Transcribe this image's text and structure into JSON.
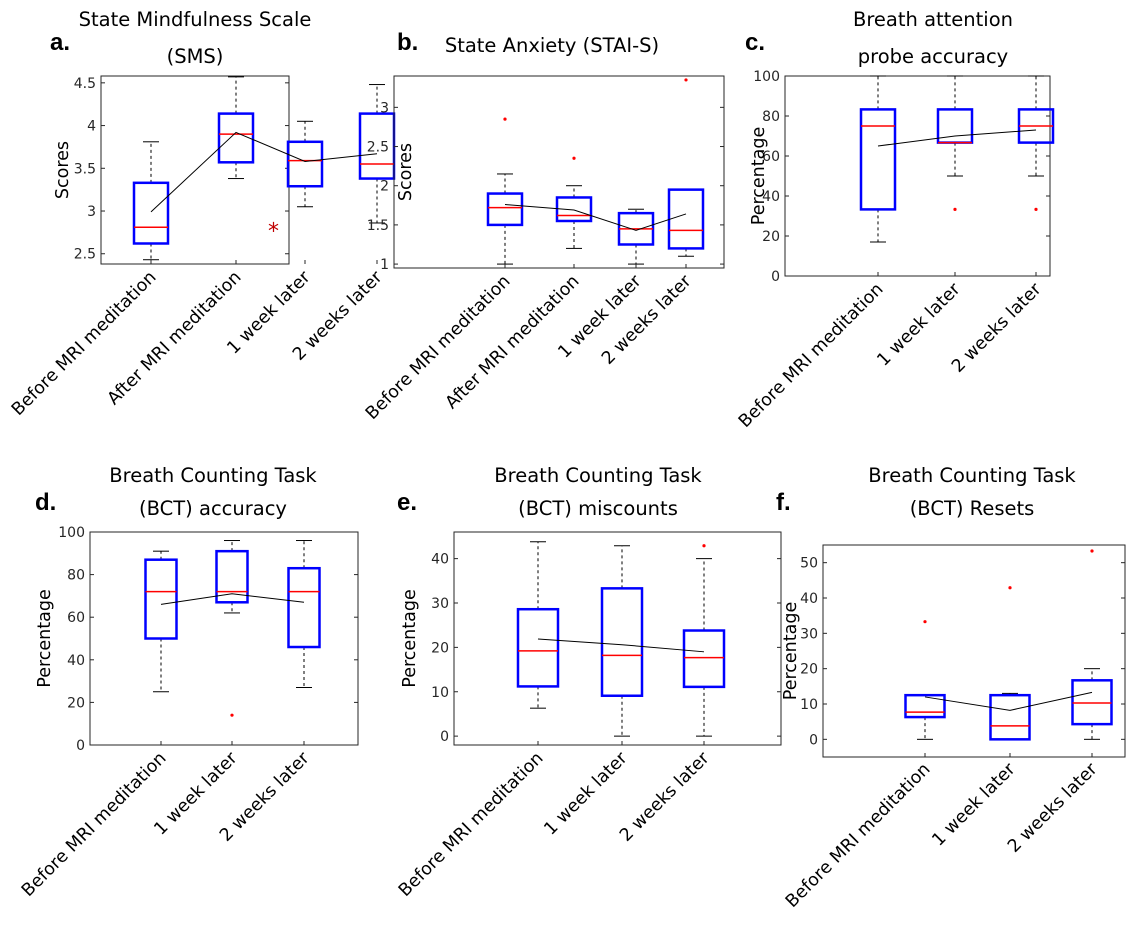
{
  "figure": {
    "colors": {
      "box": "#0000ff",
      "median": "#ff0000",
      "outlier": "#ff0000",
      "whisker": "#000000",
      "mean_line": "#000000",
      "significance": "#c00000"
    }
  },
  "chart_data": [
    {
      "type": "box",
      "panel": "a.",
      "title": [
        "State Mindfulness Scale",
        "(SMS)"
      ],
      "ylabel": "Scores",
      "ylim": [
        2.38,
        4.58
      ],
      "yticks": [
        "2.5",
        "3",
        "3.5",
        "4",
        "4.5"
      ],
      "categories": [
        "Before MRI meditation",
        "After MRI meditation",
        "1 week later",
        "2 weeks later"
      ],
      "boxes": [
        {
          "whisker_low": 2.43,
          "q1": 2.62,
          "median": 2.81,
          "q3": 3.33,
          "whisker_high": 3.81,
          "outliers": []
        },
        {
          "whisker_low": 3.38,
          "q1": 3.57,
          "median": 3.9,
          "q3": 4.14,
          "whisker_high": 4.57,
          "outliers": []
        },
        {
          "whisker_low": 3.05,
          "q1": 3.29,
          "median": 3.59,
          "q3": 3.81,
          "whisker_high": 4.05,
          "outliers": []
        },
        {
          "whisker_low": 2.86,
          "q1": 3.38,
          "median": 3.55,
          "q3": 4.14,
          "whisker_high": 4.48,
          "outliers": []
        }
      ],
      "means": [
        2.99,
        3.92,
        3.58,
        3.67
      ],
      "annotations": [
        {
          "text": "*",
          "category_index": 1.5,
          "y": 2.82
        }
      ]
    },
    {
      "type": "box",
      "panel": "b.",
      "title": [
        "State Anxiety (STAI-S)"
      ],
      "ylabel": "Scores",
      "ylim": [
        0.95,
        3.4
      ],
      "yticks": [
        "1",
        "1.5",
        "2",
        "2.5",
        "3"
      ],
      "categories": [
        "Before MRI meditation",
        "After MRI meditation",
        "1 week later",
        "2 weeks later"
      ],
      "boxes": [
        {
          "whisker_low": 1.0,
          "q1": 1.5,
          "median": 1.72,
          "q3": 1.9,
          "whisker_high": 2.15,
          "outliers": [
            2.85
          ]
        },
        {
          "whisker_low": 1.2,
          "q1": 1.55,
          "median": 1.62,
          "q3": 1.85,
          "whisker_high": 2.0,
          "outliers": [
            2.35
          ]
        },
        {
          "whisker_low": 1.0,
          "q1": 1.25,
          "median": 1.45,
          "q3": 1.65,
          "whisker_high": 1.7,
          "outliers": []
        },
        {
          "whisker_low": 1.1,
          "q1": 1.2,
          "median": 1.43,
          "q3": 1.95,
          "whisker_high": 1.95,
          "outliers": [
            3.35
          ]
        }
      ],
      "means": [
        1.76,
        1.69,
        1.43,
        1.64
      ]
    },
    {
      "type": "box",
      "panel": "c.",
      "title": [
        "Breath attention",
        "probe accuracy"
      ],
      "ylabel": "Percentage",
      "ylim": [
        0,
        100
      ],
      "yticks": [
        "0",
        "20",
        "40",
        "60",
        "80",
        "100"
      ],
      "categories": [
        "Before MRI meditation",
        "1 week later",
        "2 weeks later"
      ],
      "boxes": [
        {
          "whisker_low": 17,
          "q1": 33.3,
          "median": 75,
          "q3": 83.3,
          "whisker_high": 100,
          "outliers": []
        },
        {
          "whisker_low": 50,
          "q1": 66.7,
          "median": 66.7,
          "q3": 83.3,
          "whisker_high": 100,
          "outliers": [
            33.3
          ]
        },
        {
          "whisker_low": 50,
          "q1": 66.7,
          "median": 75,
          "q3": 83.3,
          "whisker_high": 100,
          "outliers": [
            33.3
          ]
        }
      ],
      "means": [
        65,
        70,
        73
      ]
    },
    {
      "type": "box",
      "panel": "d.",
      "title": [
        "Breath Counting Task",
        "(BCT) accuracy"
      ],
      "ylabel": "Percentage",
      "ylim": [
        0,
        100
      ],
      "yticks": [
        "0",
        "20",
        "40",
        "60",
        "80",
        "100"
      ],
      "categories": [
        "Before MRI meditation",
        "1 week later",
        "2 weeks later"
      ],
      "boxes": [
        {
          "whisker_low": 25,
          "q1": 50,
          "median": 72,
          "q3": 87,
          "whisker_high": 91,
          "outliers": []
        },
        {
          "whisker_low": 62,
          "q1": 67,
          "median": 72,
          "q3": 91,
          "whisker_high": 96,
          "outliers": [
            14
          ]
        },
        {
          "whisker_low": 27,
          "q1": 46,
          "median": 72,
          "q3": 83,
          "whisker_high": 96,
          "outliers": []
        }
      ],
      "means": [
        66,
        71,
        67
      ]
    },
    {
      "type": "box",
      "panel": "e.",
      "title": [
        "Breath Counting Task",
        "(BCT) miscounts"
      ],
      "ylabel": "Percentage",
      "ylim": [
        -2,
        46
      ],
      "yticks": [
        "0",
        "10",
        "20",
        "30",
        "40"
      ],
      "categories": [
        "Before MRI meditation",
        "1 week later",
        "2 weeks later"
      ],
      "boxes": [
        {
          "whisker_low": 6.3,
          "q1": 11.2,
          "median": 19.2,
          "q3": 28.6,
          "whisker_high": 43.8,
          "outliers": []
        },
        {
          "whisker_low": 0,
          "q1": 9.1,
          "median": 18.2,
          "q3": 33.3,
          "whisker_high": 42.9,
          "outliers": []
        },
        {
          "whisker_low": 0,
          "q1": 11.1,
          "median": 17.7,
          "q3": 23.8,
          "whisker_high": 40,
          "outliers": [
            42.9
          ]
        }
      ],
      "means": [
        21.9,
        20.6,
        19.0
      ]
    },
    {
      "type": "box",
      "panel": "f.",
      "title": [
        "Breath Counting Task",
        "(BCT) Resets"
      ],
      "ylabel": "Percentage",
      "ylim": [
        -5,
        55
      ],
      "yticks": [
        "0",
        "10",
        "20",
        "30",
        "40",
        "50"
      ],
      "categories": [
        "Before MRI meditation",
        "1 week later",
        "2 weeks later"
      ],
      "boxes": [
        {
          "whisker_low": 0,
          "q1": 6.3,
          "median": 7.7,
          "q3": 12.5,
          "whisker_high": 12.5,
          "outliers": [
            33.3
          ]
        },
        {
          "whisker_low": 0,
          "q1": 0,
          "median": 3.8,
          "q3": 12.5,
          "whisker_high": 13,
          "outliers": [
            42.9
          ]
        },
        {
          "whisker_low": 0,
          "q1": 4.3,
          "median": 10.3,
          "q3": 16.7,
          "whisker_high": 20,
          "outliers": [
            53.3
          ]
        }
      ],
      "means": [
        12,
        8.2,
        13.3
      ]
    }
  ]
}
